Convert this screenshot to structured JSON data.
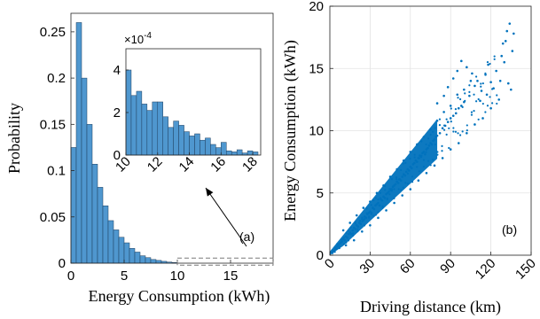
{
  "figure": {
    "bar_color": "#4f97cf",
    "bar_edge": "#1f3f5f",
    "point_color": "#0072bd",
    "grid_color": "#e3e3e3",
    "inset_link_color": "#000000"
  },
  "chart_data": [
    {
      "id": "a",
      "type": "bar",
      "panel_label": "(a)",
      "xlabel": "Energy Consumption (kWh)",
      "ylabel": "Probability",
      "xlim": [
        0,
        19
      ],
      "ylim": [
        0,
        0.27
      ],
      "xticks": [
        0,
        5,
        10,
        15
      ],
      "yticks": [
        0,
        0.05,
        0.1,
        0.15,
        0.2,
        0.25
      ],
      "ytick_labels": [
        "0",
        "0.05",
        "0.1",
        "0.15",
        "0.2",
        "0.25"
      ],
      "bin_width": 0.5,
      "bins_left": [
        0,
        0.5,
        1,
        1.5,
        2,
        2.5,
        3,
        3.5,
        4,
        4.5,
        5,
        5.5,
        6,
        6.5,
        7,
        7.5,
        8,
        8.5,
        9,
        9.5
      ],
      "values": [
        0.125,
        0.26,
        0.2,
        0.15,
        0.107,
        0.082,
        0.062,
        0.046,
        0.036,
        0.028,
        0.022,
        0.016,
        0.012,
        0.008,
        0.006,
        0.004,
        0.003,
        0.002,
        0.0012,
        0.0007
      ],
      "grid": false,
      "zoom_box": {
        "x": [
          10,
          19
        ],
        "y": [
          0,
          0.0055
        ]
      }
    },
    {
      "id": "a-inset",
      "type": "bar",
      "multiplier_label": "×10",
      "multiplier_exponent": "-4",
      "xlim": [
        10,
        18.5
      ],
      "ylim": [
        0,
        5
      ],
      "xticks": [
        10,
        12,
        14,
        16,
        18
      ],
      "yticks": [
        0,
        2,
        4
      ],
      "bin_width": 0.333,
      "bins_left": [
        10,
        10.333,
        10.667,
        11,
        11.333,
        11.667,
        12,
        12.333,
        12.667,
        13,
        13.333,
        13.667,
        14,
        14.333,
        14.667,
        15,
        15.333,
        15.667,
        16,
        16.333,
        16.667,
        17,
        17.333,
        17.667,
        18
      ],
      "values": [
        4.0,
        2.8,
        3.0,
        2.4,
        2.1,
        2.5,
        2.5,
        1.8,
        1.3,
        1.6,
        1.4,
        1.1,
        0.9,
        1.0,
        0.7,
        0.8,
        0.5,
        0.35,
        0.6,
        0.2,
        0.15,
        0.25,
        0.1,
        0.2,
        0.15
      ],
      "grid": false
    },
    {
      "id": "b",
      "type": "scatter",
      "panel_label": "(b)",
      "xlabel": "Driving distance (km)",
      "ylabel": "Energy Consumption (kWh)",
      "xlim": [
        0,
        150
      ],
      "ylim": [
        0,
        20
      ],
      "xticks": [
        0,
        30,
        60,
        90,
        120,
        150
      ],
      "yticks": [
        0,
        5,
        10,
        15,
        20
      ],
      "grid": true,
      "dense_region": "points concentrated along a line of slope ≈ 0.115 kWh/km, spread widening with distance",
      "points": [
        [
          1,
          0.2
        ],
        [
          2,
          0.4
        ],
        [
          3,
          0.3
        ],
        [
          4,
          0.6
        ],
        [
          5,
          0.5
        ],
        [
          6,
          0.8
        ],
        [
          7,
          0.9
        ],
        [
          8,
          1.0
        ],
        [
          9,
          1.1
        ],
        [
          10,
          1.3
        ],
        [
          11,
          1.2
        ],
        [
          12,
          1.5
        ],
        [
          13,
          1.4
        ],
        [
          14,
          1.7
        ],
        [
          15,
          1.8
        ],
        [
          16,
          1.7
        ],
        [
          17,
          2.0
        ],
        [
          18,
          2.2
        ],
        [
          19,
          2.1
        ],
        [
          20,
          2.4
        ],
        [
          21,
          2.3
        ],
        [
          22,
          2.6
        ],
        [
          23,
          2.5
        ],
        [
          24,
          2.9
        ],
        [
          25,
          2.8
        ],
        [
          26,
          3.1
        ],
        [
          27,
          3.0
        ],
        [
          28,
          3.3
        ],
        [
          29,
          3.4
        ],
        [
          30,
          3.5
        ],
        [
          31,
          3.4
        ],
        [
          32,
          3.8
        ],
        [
          33,
          3.7
        ],
        [
          34,
          4.0
        ],
        [
          35,
          4.1
        ],
        [
          36,
          4.2
        ],
        [
          37,
          4.0
        ],
        [
          38,
          4.5
        ],
        [
          39,
          4.4
        ],
        [
          40,
          4.7
        ],
        [
          41,
          4.6
        ],
        [
          42,
          4.9
        ],
        [
          43,
          5.0
        ],
        [
          44,
          5.1
        ],
        [
          45,
          5.3
        ],
        [
          46,
          5.2
        ],
        [
          47,
          5.5
        ],
        [
          48,
          5.6
        ],
        [
          49,
          5.7
        ],
        [
          50,
          5.9
        ],
        [
          51,
          5.8
        ],
        [
          52,
          6.1
        ],
        [
          53,
          6.0
        ],
        [
          54,
          6.3
        ],
        [
          55,
          6.5
        ],
        [
          56,
          6.4
        ],
        [
          57,
          6.7
        ],
        [
          58,
          6.9
        ],
        [
          59,
          6.8
        ],
        [
          60,
          7.1
        ],
        [
          61,
          7.0
        ],
        [
          62,
          7.3
        ],
        [
          63,
          7.4
        ],
        [
          64,
          7.6
        ],
        [
          65,
          7.5
        ],
        [
          66,
          7.8
        ],
        [
          67,
          8.0
        ],
        [
          68,
          7.9
        ],
        [
          69,
          8.2
        ],
        [
          70,
          8.3
        ],
        [
          71,
          8.1
        ],
        [
          72,
          8.5
        ],
        [
          73,
          8.6
        ],
        [
          74,
          8.8
        ],
        [
          75,
          9.0
        ],
        [
          76,
          8.9
        ],
        [
          77,
          9.2
        ],
        [
          78,
          9.3
        ],
        [
          79,
          9.5
        ],
        [
          80,
          9.6
        ],
        [
          82,
          9.8
        ],
        [
          84,
          10.2
        ],
        [
          86,
          10.4
        ],
        [
          88,
          10.7
        ],
        [
          90,
          11.0
        ],
        [
          92,
          11.2
        ],
        [
          94,
          11.4
        ],
        [
          96,
          11.8
        ],
        [
          98,
          12.0
        ],
        [
          100,
          12.3
        ],
        [
          10,
          2.0
        ],
        [
          15,
          2.6
        ],
        [
          20,
          3.2
        ],
        [
          25,
          3.8
        ],
        [
          30,
          4.3
        ],
        [
          35,
          5.0
        ],
        [
          40,
          5.6
        ],
        [
          45,
          6.3
        ],
        [
          50,
          6.9
        ],
        [
          55,
          7.6
        ],
        [
          60,
          8.3
        ],
        [
          65,
          8.9
        ],
        [
          70,
          9.5
        ],
        [
          75,
          10.1
        ],
        [
          80,
          10.8
        ],
        [
          85,
          11.5
        ],
        [
          90,
          12.0
        ],
        [
          95,
          12.9
        ],
        [
          100,
          13.3
        ],
        [
          105,
          14.0
        ],
        [
          12,
          0.8
        ],
        [
          18,
          1.2
        ],
        [
          24,
          1.9
        ],
        [
          30,
          2.4
        ],
        [
          36,
          3.0
        ],
        [
          42,
          3.6
        ],
        [
          48,
          4.2
        ],
        [
          54,
          4.8
        ],
        [
          60,
          5.3
        ],
        [
          66,
          6.0
        ],
        [
          72,
          6.6
        ],
        [
          78,
          7.2
        ],
        [
          84,
          7.8
        ],
        [
          90,
          8.5
        ],
        [
          96,
          9.0
        ],
        [
          102,
          9.8
        ],
        [
          108,
          10.5
        ],
        [
          114,
          11.0
        ],
        [
          120,
          11.8
        ],
        [
          126,
          12.5
        ],
        [
          80,
          12.2
        ],
        [
          85,
          12.8
        ],
        [
          88,
          13.5
        ],
        [
          92,
          14.2
        ],
        [
          95,
          14.8
        ],
        [
          98,
          15.6
        ],
        [
          102,
          15.1
        ],
        [
          106,
          14.6
        ],
        [
          110,
          14.0
        ],
        [
          113,
          13.2
        ],
        [
          116,
          14.5
        ],
        [
          118,
          15.3
        ],
        [
          120,
          13.9
        ],
        [
          124,
          14.8
        ],
        [
          128,
          16.0
        ],
        [
          131,
          17.2
        ],
        [
          132,
          18.0
        ],
        [
          134,
          18.6
        ],
        [
          133,
          13.8
        ],
        [
          135,
          13.3
        ],
        [
          130,
          15.5
        ],
        [
          129,
          17.0
        ],
        [
          136,
          16.4
        ],
        [
          137,
          17.8
        ],
        [
          104,
          12.8
        ],
        [
          108,
          13.6
        ],
        [
          112,
          12.4
        ],
        [
          117,
          12.9
        ],
        [
          122,
          13.4
        ],
        [
          127,
          14.0
        ]
      ]
    }
  ]
}
